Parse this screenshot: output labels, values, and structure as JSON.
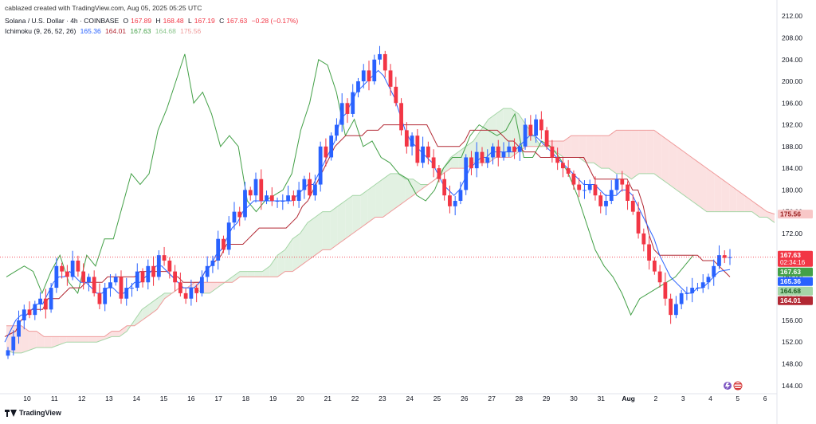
{
  "header": {
    "credit": "cablazed created with TradingView.com, Aug 05, 2025 05:25 UTC"
  },
  "legend": {
    "symbol": "Solana / U.S. Dollar · 4h · COINBASE",
    "ohlc": [
      {
        "label": "O",
        "value": "167.89"
      },
      {
        "label": "H",
        "value": "168.48"
      },
      {
        "label": "L",
        "value": "167.19"
      },
      {
        "label": "C",
        "value": "167.63"
      }
    ],
    "change": "−0.28 (−0.17%)",
    "ichimoku_label": "Ichimoku (9, 26, 52, 26)",
    "ichimoku_values": [
      {
        "value": "165.36",
        "color": "#2962ff"
      },
      {
        "value": "164.01",
        "color": "#b22833"
      },
      {
        "value": "167.63",
        "color": "#43a047"
      },
      {
        "value": "164.68",
        "color": "#a5d6a7"
      },
      {
        "value": "175.56",
        "color": "#ef9a9a"
      }
    ]
  },
  "footer": {
    "brand": "TradingView"
  },
  "chart_data": {
    "type": "candlestick",
    "y_ticks": [
      "144.00",
      "148.00",
      "152.00",
      "156.00",
      "160.00",
      "164.00",
      "168.00",
      "172.00",
      "176.00",
      "180.00",
      "184.00",
      "188.00",
      "192.00",
      "196.00",
      "200.00",
      "204.00",
      "208.00",
      "212.00"
    ],
    "ylim": [
      142.5,
      213.5
    ],
    "x_ticks": [
      "10",
      "11",
      "12",
      "13",
      "14",
      "15",
      "16",
      "17",
      "18",
      "19",
      "20",
      "21",
      "22",
      "23",
      "24",
      "25",
      "26",
      "27",
      "28",
      "29",
      "30",
      "31",
      "Aug",
      "2",
      "3",
      "4",
      "5",
      "6"
    ],
    "price_labels": [
      {
        "value": "175.56",
        "color": "#f8c7c7",
        "text_color": "#9b2222"
      },
      {
        "value": "167.63",
        "sub": "02:34:16",
        "color": "#f23645",
        "text_color": "#ffffff"
      },
      {
        "value": "167.63",
        "color": "#43a047",
        "text_color": "#ffffff"
      },
      {
        "value": "165.36",
        "color": "#2962ff",
        "text_color": "#ffffff"
      },
      {
        "value": "164.68",
        "color": "#a5d6a7",
        "text_color": "#1b5e20"
      },
      {
        "value": "164.01",
        "color": "#b22833",
        "text_color": "#ffffff"
      }
    ],
    "current_price": 167.63,
    "colors": {
      "up": "#2962ff",
      "down": "#f23645",
      "tenkan": "#2962ff",
      "kijun": "#b22833",
      "chikou": "#43a047",
      "cloud_bull": "#e2f1e2",
      "cloud_bear": "#fbe1e1"
    },
    "candle_closes": [
      150.5,
      153,
      156,
      158,
      157,
      159,
      160,
      158,
      162,
      166,
      165,
      164,
      167,
      165,
      163,
      164,
      161,
      159,
      162,
      163,
      164,
      160,
      162,
      162,
      165,
      163,
      166,
      164,
      168,
      167,
      165,
      163,
      161,
      160,
      162,
      161,
      164,
      166,
      167,
      171,
      169,
      174,
      176,
      175,
      180,
      179,
      182,
      178,
      179,
      178,
      178,
      178,
      179,
      178,
      180,
      182,
      179,
      181,
      188,
      186,
      190,
      192,
      196,
      194,
      198,
      200,
      202,
      200,
      204,
      205,
      202,
      199,
      196,
      191,
      188,
      190,
      185,
      188,
      186,
      184,
      182,
      179,
      177,
      178,
      180,
      186,
      184,
      187,
      185,
      186,
      188,
      186,
      187,
      188,
      187,
      188,
      192,
      190,
      193,
      191,
      188,
      186,
      185,
      184,
      183,
      181,
      180,
      180,
      181,
      179,
      177,
      178,
      180,
      182,
      181,
      178,
      176,
      172,
      170,
      167,
      165,
      163,
      160,
      157,
      159,
      161,
      161,
      162,
      162,
      163,
      164,
      166,
      168,
      167.5,
      167.63
    ],
    "kijun_line": [
      153,
      153.5,
      154,
      156,
      157,
      158,
      158,
      158,
      160,
      160,
      160,
      161,
      162,
      162,
      162,
      163,
      163,
      163,
      163,
      164,
      164,
      164,
      164,
      164,
      164,
      165,
      165,
      165,
      165,
      165,
      165,
      164,
      164,
      163,
      163,
      163,
      163,
      165,
      166,
      167,
      168,
      170,
      170,
      170,
      170,
      171,
      172,
      173,
      173,
      173,
      173,
      173,
      173,
      174,
      175,
      177,
      178,
      180,
      182,
      184,
      186,
      188,
      189,
      190,
      190,
      190,
      190,
      191,
      191,
      191,
      192,
      192,
      192,
      192,
      192,
      192,
      192,
      192,
      192,
      190,
      188,
      188,
      188,
      188,
      188,
      189,
      191,
      191,
      191,
      191,
      191,
      191,
      190,
      189,
      189,
      188,
      187,
      187,
      187,
      186,
      186,
      186,
      186,
      186,
      186,
      186,
      186,
      186,
      184,
      182,
      182,
      182,
      182,
      182,
      182,
      182,
      180,
      180,
      177,
      172,
      169,
      168,
      168,
      168,
      168,
      168,
      168,
      168,
      168,
      167,
      167,
      167,
      166,
      165,
      164.01
    ],
    "tenkan_line": [
      152,
      154,
      156,
      157,
      157,
      158,
      159,
      159,
      161,
      163,
      164,
      164,
      165,
      164,
      163,
      163,
      162,
      161,
      161,
      162,
      162,
      161,
      161,
      162,
      163,
      163,
      164,
      165,
      166,
      166,
      165,
      164,
      163,
      162,
      162,
      162,
      163,
      165,
      166,
      168,
      169,
      171,
      173,
      174,
      176,
      177,
      178,
      178,
      178,
      178,
      178,
      178,
      178,
      178,
      179,
      180,
      181,
      181,
      183,
      185,
      187,
      189,
      193,
      194,
      196,
      198,
      199,
      200,
      201,
      202,
      201,
      199,
      197,
      194,
      191,
      189,
      188,
      187,
      186,
      185,
      183,
      181,
      180,
      179,
      180,
      182,
      184,
      185,
      186,
      186,
      187,
      187,
      187,
      187,
      187,
      188,
      189,
      190,
      190,
      189,
      188,
      187,
      186,
      185,
      184,
      183,
      182,
      181,
      181,
      181,
      180,
      179,
      179,
      179,
      180,
      180,
      179,
      177,
      175,
      173,
      171,
      168,
      166,
      164,
      163,
      162,
      161,
      161,
      162,
      162,
      163,
      164,
      165,
      165.2,
      165.36
    ],
    "chikou_line": [
      164,
      165,
      166,
      165,
      161,
      165,
      168,
      163,
      161,
      168,
      166,
      171,
      171,
      177,
      183,
      181,
      183,
      191,
      195,
      200,
      205,
      196,
      198,
      194,
      188,
      190,
      188,
      178,
      176,
      178,
      179,
      180,
      183,
      191,
      196,
      204,
      203,
      198,
      190,
      193,
      188,
      189,
      186,
      185,
      183,
      182,
      179,
      178,
      180,
      184,
      186,
      186,
      190,
      192,
      191,
      190,
      191,
      194,
      186,
      186,
      189,
      188,
      186,
      183,
      179,
      174,
      169,
      166,
      164,
      161,
      157,
      160,
      161,
      162,
      163,
      164,
      166,
      168
    ],
    "cloud_a": [
      150.5,
      150,
      150,
      150.5,
      151,
      151,
      151,
      151.5,
      152,
      152,
      152,
      152,
      152,
      152.5,
      153,
      153,
      154,
      156,
      158,
      159,
      160,
      161,
      161,
      162,
      162,
      162,
      161,
      161,
      162,
      163,
      164,
      165,
      165,
      165,
      165,
      166,
      168,
      169,
      171,
      172,
      174,
      175,
      176,
      176,
      177,
      178,
      179,
      179,
      180,
      181,
      182,
      183,
      183,
      182,
      182,
      181,
      181,
      182,
      184,
      186,
      187,
      188,
      189,
      191,
      193,
      194,
      195,
      195,
      194,
      192,
      190,
      188,
      188,
      187,
      186,
      186,
      186,
      185,
      185,
      184,
      184,
      183,
      183,
      182,
      183,
      183,
      183,
      182,
      181,
      180,
      179,
      178,
      177,
      176,
      176,
      176,
      176,
      176,
      176,
      176,
      175,
      175,
      174,
      173,
      172,
      171,
      170,
      169,
      168,
      167,
      166,
      165,
      164.68
    ],
    "cloud_b": [
      155,
      155,
      155,
      154,
      154,
      153,
      153,
      153,
      153,
      153,
      153,
      153,
      153,
      153,
      154,
      154,
      155,
      155,
      156,
      157,
      158,
      160,
      161,
      162,
      162,
      163,
      163,
      163,
      163,
      163,
      163,
      164,
      164,
      164,
      164,
      164,
      164,
      165,
      165,
      166,
      167,
      168,
      169,
      169,
      170,
      171,
      172,
      173,
      174,
      175,
      175,
      176,
      177,
      178,
      179,
      180,
      181,
      182,
      183,
      184,
      184,
      184,
      185,
      185,
      185,
      186,
      186,
      186,
      187,
      188,
      188,
      188,
      189,
      189,
      189,
      190,
      190,
      190,
      190,
      190,
      190,
      191,
      191,
      191,
      191,
      191,
      191,
      190,
      189,
      188,
      187,
      186,
      185,
      184,
      183,
      182,
      181,
      180,
      179,
      178,
      177,
      176,
      175.56
    ]
  }
}
